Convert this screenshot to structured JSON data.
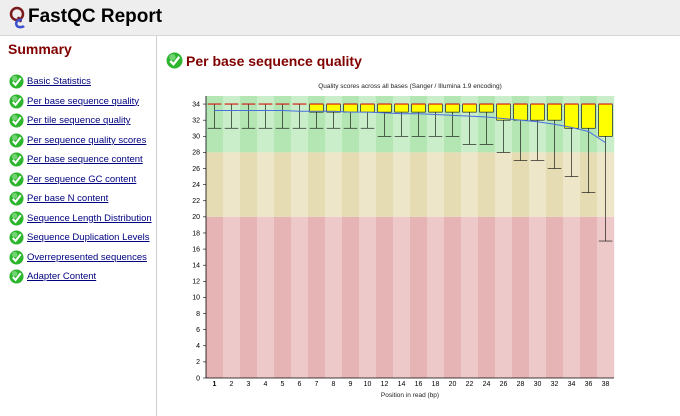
{
  "app": {
    "title": "FastQC Report"
  },
  "sidebar": {
    "title": "Summary",
    "items": [
      {
        "label": "Basic Statistics"
      },
      {
        "label": "Per base sequence quality"
      },
      {
        "label": "Per tile sequence quality"
      },
      {
        "label": "Per sequence quality scores"
      },
      {
        "label": "Per base sequence content"
      },
      {
        "label": "Per sequence GC content"
      },
      {
        "label": "Per base N content"
      },
      {
        "label": "Sequence Length Distribution"
      },
      {
        "label": "Sequence Duplication Levels"
      },
      {
        "label": "Overrepresented sequences"
      },
      {
        "label": "Adapter Content"
      }
    ]
  },
  "main": {
    "section_title": "Per base sequence quality"
  },
  "colors": {
    "pass_green": "#2db52d",
    "header_bg": "#eeeeee",
    "title_red": "#800000",
    "link_blue": "#000080",
    "box_yellow": "#ffff00",
    "mean_line": "#4a6fe0",
    "zone_good": "#b4e6b4",
    "zone_ok": "#e6dcb4",
    "zone_bad": "#e6b4b4"
  },
  "chart_data": {
    "type": "box",
    "title": "Quality scores across all bases (Sanger / Illumina 1.9 encoding)",
    "xlabel": "Position in read (bp)",
    "ylabel": "",
    "ylim": [
      0,
      35
    ],
    "yticks": [
      0,
      2,
      4,
      6,
      8,
      10,
      12,
      14,
      16,
      18,
      20,
      22,
      24,
      26,
      28,
      30,
      32,
      34
    ],
    "xtick_labels": [
      "1",
      "2",
      "3",
      "4",
      "5",
      "6",
      "7",
      "8",
      "9",
      "10",
      "12",
      "14",
      "16",
      "18",
      "20",
      "22",
      "24",
      "26",
      "28",
      "30",
      "32",
      "34",
      "36",
      "38"
    ],
    "zones": [
      {
        "name": "good",
        "from": 28,
        "to": 35
      },
      {
        "name": "ok",
        "from": 20,
        "to": 28
      },
      {
        "name": "bad",
        "from": 0,
        "to": 20
      }
    ],
    "categories": [
      "1",
      "2",
      "3",
      "4",
      "5",
      "6",
      "7",
      "8",
      "9",
      "10",
      "12",
      "14",
      "16",
      "18",
      "20",
      "22",
      "24",
      "26",
      "28",
      "30",
      "32",
      "34",
      "36",
      "38"
    ],
    "boxes": [
      {
        "low": 31,
        "q1": 34,
        "median": 34,
        "q3": 34,
        "high": 34,
        "mean": 33.2
      },
      {
        "low": 31,
        "q1": 34,
        "median": 34,
        "q3": 34,
        "high": 34,
        "mean": 33.2
      },
      {
        "low": 31,
        "q1": 34,
        "median": 34,
        "q3": 34,
        "high": 34,
        "mean": 33.2
      },
      {
        "low": 31,
        "q1": 34,
        "median": 34,
        "q3": 34,
        "high": 34,
        "mean": 33.2
      },
      {
        "low": 31,
        "q1": 34,
        "median": 34,
        "q3": 34,
        "high": 34,
        "mean": 33.2
      },
      {
        "low": 31,
        "q1": 34,
        "median": 34,
        "q3": 34,
        "high": 34,
        "mean": 33.1
      },
      {
        "low": 31,
        "q1": 33,
        "median": 34,
        "q3": 34,
        "high": 34,
        "mean": 33.1
      },
      {
        "low": 31,
        "q1": 33,
        "median": 34,
        "q3": 34,
        "high": 34,
        "mean": 33.1
      },
      {
        "low": 31,
        "q1": 33,
        "median": 34,
        "q3": 34,
        "high": 34,
        "mean": 33.0
      },
      {
        "low": 31,
        "q1": 33,
        "median": 34,
        "q3": 34,
        "high": 34,
        "mean": 33.0
      },
      {
        "low": 30,
        "q1": 33,
        "median": 34,
        "q3": 34,
        "high": 34,
        "mean": 32.9
      },
      {
        "low": 30,
        "q1": 33,
        "median": 34,
        "q3": 34,
        "high": 34,
        "mean": 32.8
      },
      {
        "low": 30,
        "q1": 33,
        "median": 34,
        "q3": 34,
        "high": 34,
        "mean": 32.8
      },
      {
        "low": 30,
        "q1": 33,
        "median": 34,
        "q3": 34,
        "high": 34,
        "mean": 32.7
      },
      {
        "low": 30,
        "q1": 33,
        "median": 34,
        "q3": 34,
        "high": 34,
        "mean": 32.6
      },
      {
        "low": 29,
        "q1": 33,
        "median": 34,
        "q3": 34,
        "high": 34,
        "mean": 32.5
      },
      {
        "low": 29,
        "q1": 33,
        "median": 34,
        "q3": 34,
        "high": 34,
        "mean": 32.4
      },
      {
        "low": 28,
        "q1": 32,
        "median": 34,
        "q3": 34,
        "high": 34,
        "mean": 32.2
      },
      {
        "low": 27,
        "q1": 32,
        "median": 34,
        "q3": 34,
        "high": 34,
        "mean": 32.0
      },
      {
        "low": 27,
        "q1": 32,
        "median": 34,
        "q3": 34,
        "high": 34,
        "mean": 31.8
      },
      {
        "low": 26,
        "q1": 32,
        "median": 34,
        "q3": 34,
        "high": 34,
        "mean": 31.5
      },
      {
        "low": 25,
        "q1": 31,
        "median": 34,
        "q3": 34,
        "high": 34,
        "mean": 31.1
      },
      {
        "low": 23,
        "q1": 31,
        "median": 34,
        "q3": 34,
        "high": 34,
        "mean": 30.6
      },
      {
        "low": 17,
        "q1": 30,
        "median": 34,
        "q3": 34,
        "high": 34,
        "mean": 29.2
      }
    ]
  }
}
